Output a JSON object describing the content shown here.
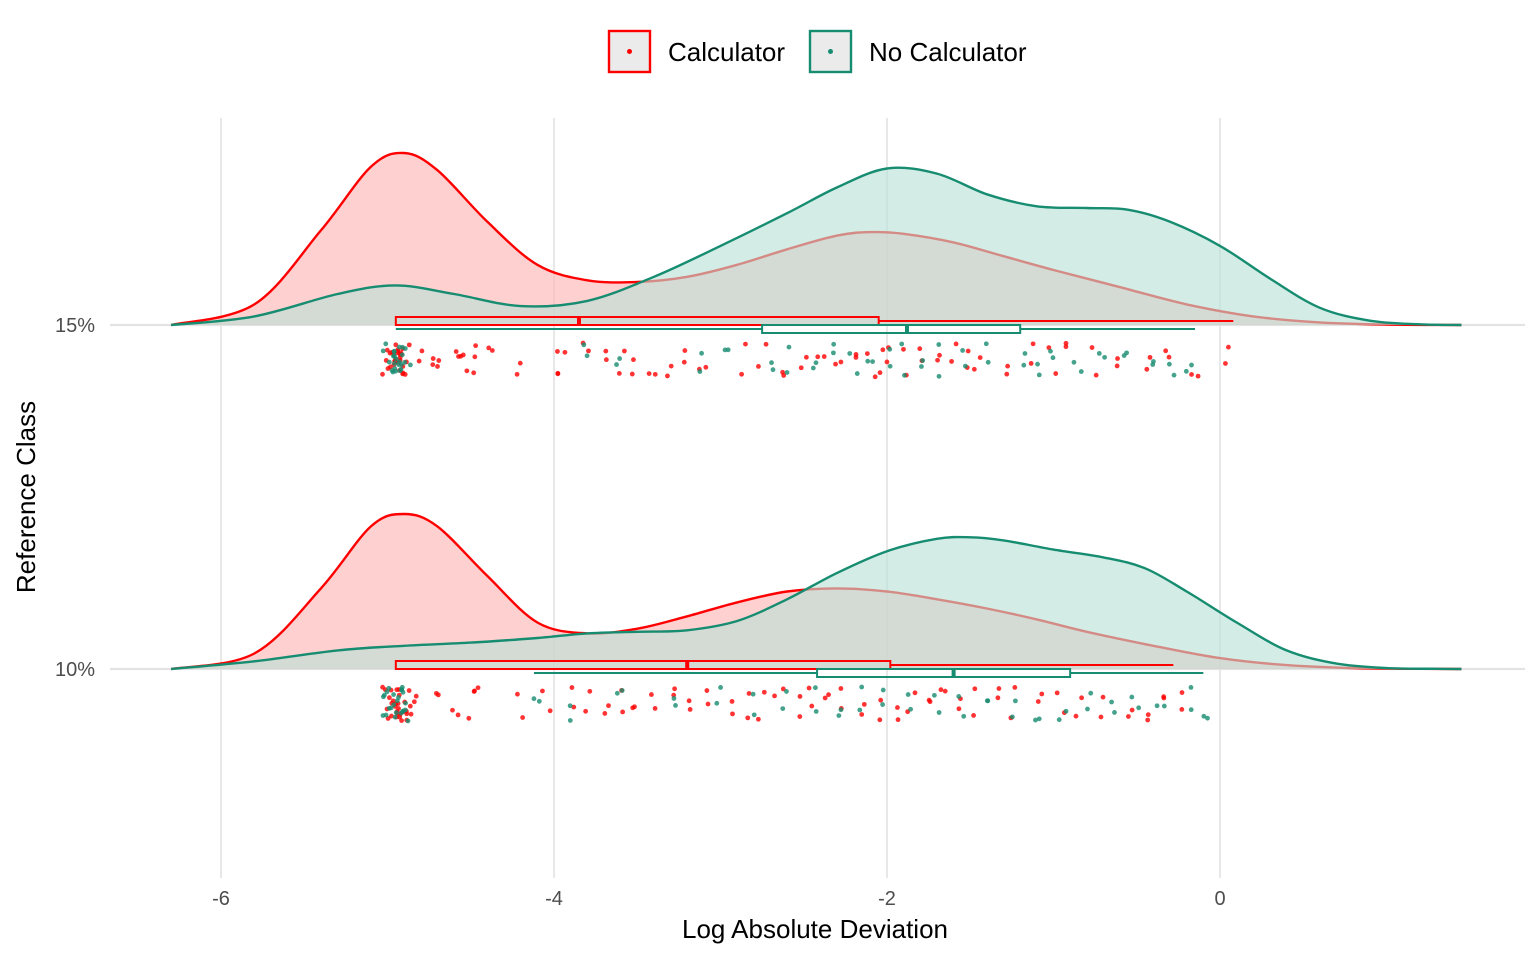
{
  "chart_data": {
    "type": "raincloud",
    "xlabel": "Log Absolute Deviation",
    "ylabel": "Reference Class",
    "xlim": [
      -6.55,
      1.45
    ],
    "x_ticks": [
      -6,
      -4,
      -2,
      0
    ],
    "x_tick_labels": [
      "-6",
      "-4",
      "-2",
      "0"
    ],
    "categories": [
      "15%",
      "10%"
    ],
    "grid": true,
    "legend_position": "top",
    "legend": [
      {
        "name": "Calculator",
        "color": "#ff0000"
      },
      {
        "name": "No Calculator",
        "color": "#168c70"
      }
    ],
    "series": [
      {
        "name": "Calculator",
        "color": "#ff0000",
        "fill": "#ffb3b3",
        "groups": [
          {
            "category": "15%",
            "density_x": [
              -6.3,
              -5.8,
              -5.4,
              -5.1,
              -4.9,
              -4.7,
              -4.4,
              -4.1,
              -3.8,
              -3.5,
              -3.2,
              -2.9,
              -2.6,
              -2.3,
              -2.1,
              -1.9,
              -1.6,
              -1.3,
              -1.0,
              -0.6,
              -0.2,
              0.2,
              0.6,
              1.0,
              1.45
            ],
            "density_y": [
              0.0,
              0.12,
              0.55,
              0.92,
              1.0,
              0.9,
              0.6,
              0.35,
              0.26,
              0.25,
              0.28,
              0.35,
              0.44,
              0.52,
              0.54,
              0.53,
              0.48,
              0.4,
              0.32,
              0.22,
              0.12,
              0.05,
              0.015,
              0.003,
              0.0
            ],
            "box": {
              "whisker_low": -4.95,
              "q1": -4.95,
              "median": -3.85,
              "q3": -2.05,
              "whisker_high": 0.08
            },
            "points": [
              -4.98,
              -4.97,
              -4.95,
              -4.93,
              -4.91,
              -4.8,
              -4.75,
              -4.7,
              -4.6,
              -4.55,
              -4.5,
              -4.45,
              -4.4,
              -4.2,
              -4.0,
              -3.95,
              -3.8,
              -3.7,
              -3.6,
              -3.5,
              -3.4,
              -3.3,
              -3.2,
              -3.1,
              -2.85,
              -2.75,
              -2.65,
              -2.5,
              -2.4,
              -2.3,
              -2.2,
              -2.1,
              -2.05,
              -2.0,
              -1.9,
              -1.8,
              -1.7,
              -1.6,
              -1.5,
              -1.45,
              -1.3,
              -1.15,
              -1.0,
              -0.9,
              -0.75,
              -0.6,
              -0.45,
              -0.3,
              -0.15,
              0.05
            ]
          },
          {
            "category": "10%",
            "density_x": [
              -6.3,
              -5.8,
              -5.4,
              -5.1,
              -4.9,
              -4.7,
              -4.4,
              -4.1,
              -3.8,
              -3.5,
              -3.2,
              -2.9,
              -2.6,
              -2.3,
              -2.0,
              -1.7,
              -1.4,
              -1.1,
              -0.8,
              -0.4,
              0.0,
              0.4,
              0.8,
              1.2,
              1.45
            ],
            "density_y": [
              0.0,
              0.1,
              0.52,
              0.92,
              1.0,
              0.92,
              0.6,
              0.3,
              0.23,
              0.26,
              0.34,
              0.43,
              0.5,
              0.52,
              0.5,
              0.45,
              0.39,
              0.32,
              0.24,
              0.15,
              0.07,
              0.025,
              0.006,
              0.001,
              0.0
            ],
            "box": {
              "whisker_low": -4.95,
              "q1": -4.95,
              "median": -3.2,
              "q3": -1.98,
              "whisker_high": -0.28
            },
            "points": [
              -4.98,
              -4.97,
              -4.95,
              -4.93,
              -4.9,
              -4.85,
              -4.7,
              -4.6,
              -4.5,
              -4.45,
              -4.2,
              -4.05,
              -3.9,
              -3.8,
              -3.7,
              -3.6,
              -3.5,
              -3.4,
              -3.3,
              -3.2,
              -3.1,
              -2.95,
              -2.85,
              -2.75,
              -2.65,
              -2.55,
              -2.45,
              -2.35,
              -2.25,
              -2.15,
              -2.05,
              -1.95,
              -1.85,
              -1.75,
              -1.65,
              -1.55,
              -1.45,
              -1.35,
              -1.25,
              -1.1,
              -0.95,
              -0.85,
              -0.7,
              -0.55,
              -0.45,
              -0.35,
              -0.25
            ]
          }
        ]
      },
      {
        "name": "No Calculator",
        "color": "#168c70",
        "fill": "#b9e0d6",
        "groups": [
          {
            "category": "15%",
            "density_x": [
              -6.3,
              -5.8,
              -5.3,
              -4.95,
              -4.6,
              -4.2,
              -3.8,
              -3.4,
              -3.0,
              -2.6,
              -2.3,
              -2.0,
              -1.7,
              -1.4,
              -1.1,
              -0.8,
              -0.55,
              -0.3,
              0.0,
              0.3,
              0.6,
              0.9,
              1.2,
              1.45
            ],
            "density_y": [
              0.0,
              0.05,
              0.18,
              0.23,
              0.18,
              0.11,
              0.14,
              0.28,
              0.46,
              0.65,
              0.8,
              0.91,
              0.88,
              0.76,
              0.69,
              0.68,
              0.67,
              0.6,
              0.46,
              0.27,
              0.1,
              0.025,
              0.004,
              0.0
            ],
            "box": {
              "whisker_low": -4.95,
              "q1": -2.75,
              "median": -1.88,
              "q3": -1.2,
              "whisker_high": -0.15
            },
            "points": [
              -4.98,
              -4.96,
              -4.94,
              -4.9,
              -3.8,
              -3.6,
              -3.1,
              -2.95,
              -2.7,
              -2.6,
              -2.45,
              -2.35,
              -2.2,
              -2.1,
              -2.0,
              -1.9,
              -1.8,
              -1.7,
              -1.55,
              -1.4,
              -1.2,
              -1.1,
              -1.0,
              -0.85,
              -0.7,
              -0.55,
              -0.4,
              -0.3,
              -0.2
            ]
          },
          {
            "category": "10%",
            "density_x": [
              -6.3,
              -5.8,
              -5.3,
              -4.9,
              -4.5,
              -4.1,
              -3.8,
              -3.5,
              -3.2,
              -2.9,
              -2.6,
              -2.3,
              -2.0,
              -1.7,
              -1.5,
              -1.3,
              -1.0,
              -0.7,
              -0.45,
              -0.2,
              0.1,
              0.4,
              0.7,
              1.0,
              1.3,
              1.45
            ],
            "density_y": [
              0.0,
              0.05,
              0.12,
              0.15,
              0.17,
              0.2,
              0.23,
              0.24,
              0.25,
              0.31,
              0.45,
              0.62,
              0.76,
              0.84,
              0.85,
              0.83,
              0.77,
              0.72,
              0.65,
              0.5,
              0.3,
              0.12,
              0.035,
              0.006,
              0.001,
              0.0
            ],
            "box": {
              "whisker_low": -4.12,
              "q1": -2.42,
              "median": -1.6,
              "q3": -0.9,
              "whisker_high": -0.1
            },
            "points": [
              -4.98,
              -4.96,
              -4.94,
              -4.92,
              -4.1,
              -3.9,
              -3.6,
              -3.3,
              -3.0,
              -2.8,
              -2.6,
              -2.45,
              -2.3,
              -2.15,
              -2.0,
              -1.85,
              -1.7,
              -1.55,
              -1.4,
              -1.25,
              -1.1,
              -0.95,
              -0.8,
              -0.65,
              -0.5,
              -0.35,
              -0.2,
              -0.1
            ]
          }
        ]
      }
    ]
  }
}
